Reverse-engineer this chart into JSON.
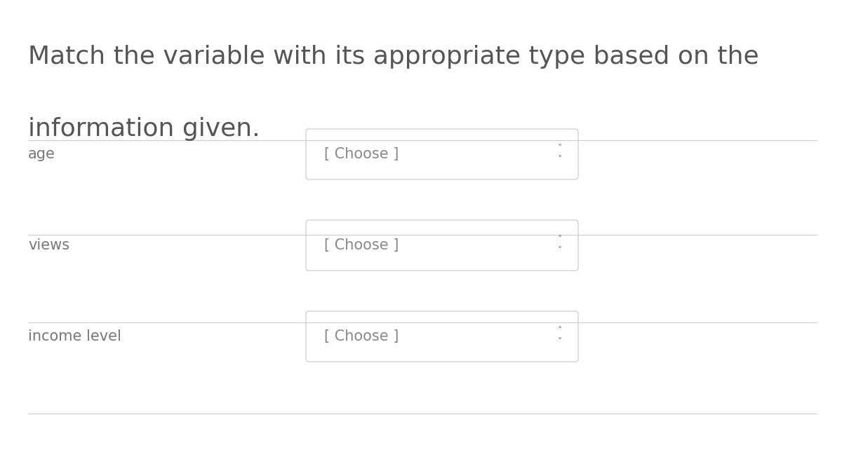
{
  "title_line1": "Match the variable with its appropriate type based on the",
  "title_line2": "information given.",
  "bg_color": "#ffffff",
  "title_color": "#555555",
  "label_color": "#777777",
  "separator_color": "#cccccc",
  "box_border_color": "#cccccc",
  "box_text_color": "#888888",
  "arrow_color": "#666666",
  "rows": [
    {
      "label": "age"
    },
    {
      "label": "views"
    },
    {
      "label": "income level"
    }
  ],
  "choose_text": "[ Choose ]",
  "title_fontsize": 26,
  "label_fontsize": 15,
  "choose_fontsize": 15,
  "arrow_up": "˄",
  "arrow_down": "˅"
}
